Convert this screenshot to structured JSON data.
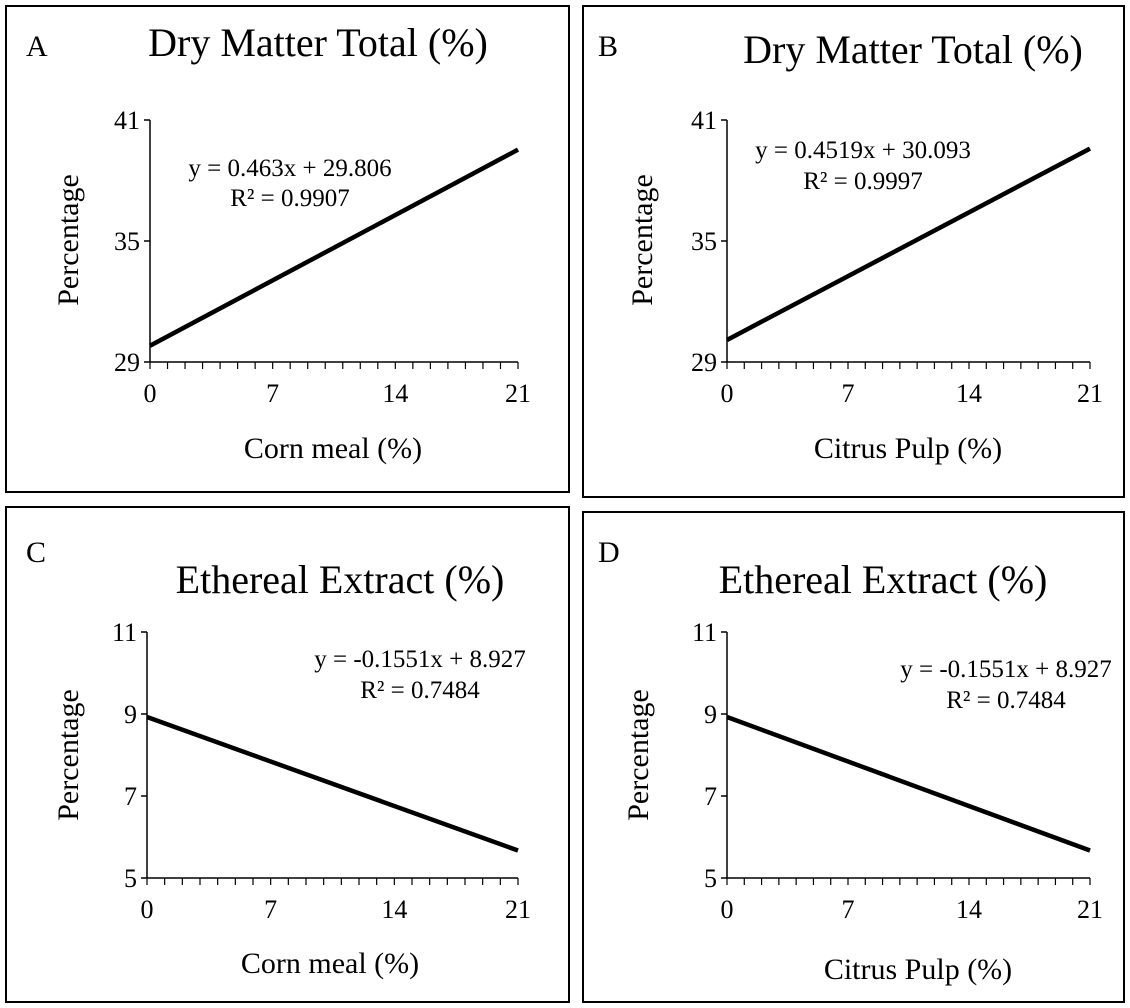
{
  "chart_data": [
    {
      "panel_label": "A",
      "type": "line",
      "title": "Dry Matter Total (%)",
      "xlabel": "Corn meal (%)",
      "ylabel": "Percentage",
      "x_ticks": [
        0,
        7,
        14,
        21
      ],
      "y_ticks": [
        29,
        35,
        41
      ],
      "xlim": [
        0,
        21
      ],
      "ylim": [
        29,
        41
      ],
      "grid": false,
      "series": [
        {
          "x": [
            0,
            21
          ],
          "y": [
            29.806,
            39.529
          ]
        }
      ],
      "equation": "y = 0.463x + 29.806",
      "r_squared": "R² = 0.9907"
    },
    {
      "panel_label": "B",
      "type": "line",
      "title": "Dry Matter Total (%)",
      "xlabel": "Citrus Pulp (%)",
      "ylabel": "Percentage",
      "x_ticks": [
        0,
        7,
        14,
        21
      ],
      "y_ticks": [
        29,
        35,
        41
      ],
      "xlim": [
        0,
        21
      ],
      "ylim": [
        29,
        41
      ],
      "grid": false,
      "series": [
        {
          "x": [
            0,
            21
          ],
          "y": [
            30.093,
            39.583
          ]
        }
      ],
      "equation": "y = 0.4519x + 30.093",
      "r_squared": "R² = 0.9997"
    },
    {
      "panel_label": "C",
      "type": "line",
      "title": "Ethereal Extract (%)",
      "xlabel": "Corn meal (%)",
      "ylabel": "Percentage",
      "x_ticks": [
        0,
        7,
        14,
        21
      ],
      "y_ticks": [
        5,
        7,
        9,
        11
      ],
      "xlim": [
        0,
        21
      ],
      "ylim": [
        5,
        11
      ],
      "grid": false,
      "series": [
        {
          "x": [
            0,
            21
          ],
          "y": [
            8.927,
            5.67
          ]
        }
      ],
      "equation": "y = -0.1551x + 8.927",
      "r_squared": "R² = 0.7484"
    },
    {
      "panel_label": "D",
      "type": "line",
      "title": "Ethereal Extract (%)",
      "xlabel": "Citrus Pulp (%)",
      "ylabel": "Percentage",
      "x_ticks": [
        0,
        7,
        14,
        21
      ],
      "y_ticks": [
        5,
        7,
        9,
        11
      ],
      "xlim": [
        0,
        21
      ],
      "ylim": [
        5,
        11
      ],
      "grid": false,
      "series": [
        {
          "x": [
            0,
            21
          ],
          "y": [
            8.927,
            5.67
          ]
        }
      ],
      "equation": "y = -0.1551x + 8.927",
      "r_squared": "R² = 0.7484"
    }
  ]
}
